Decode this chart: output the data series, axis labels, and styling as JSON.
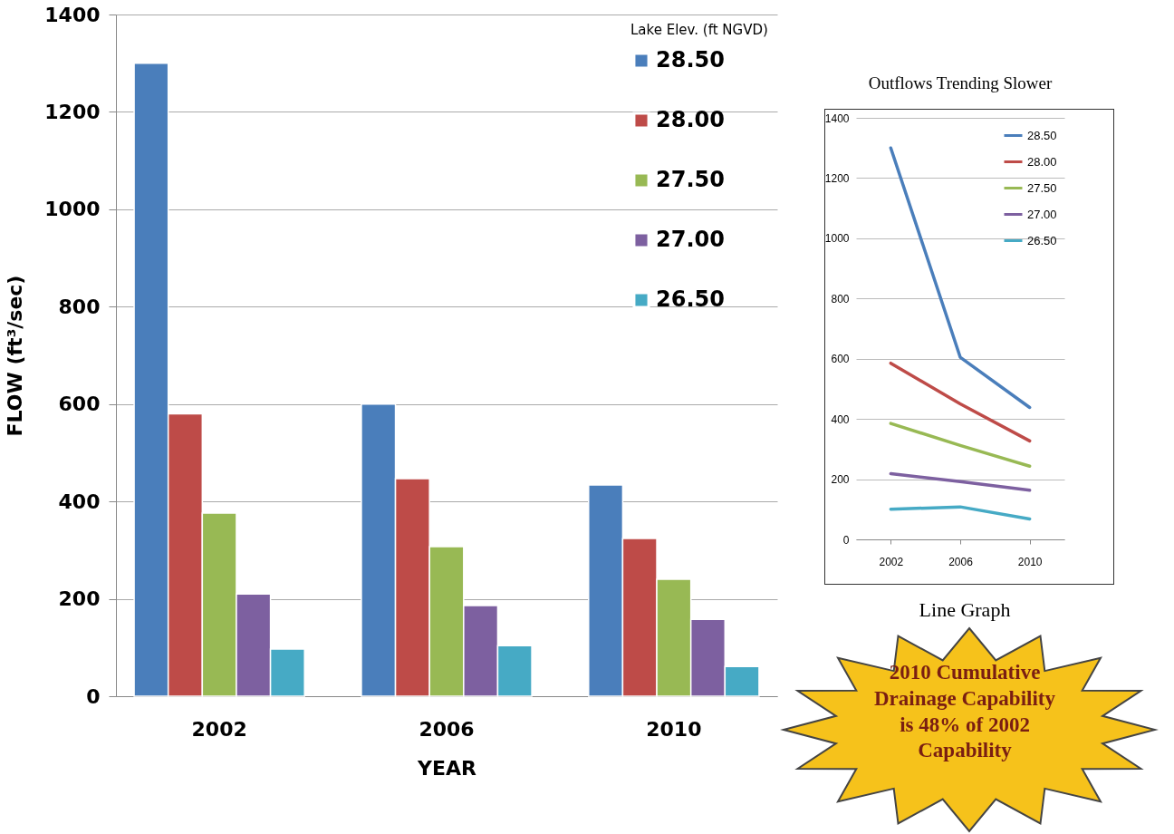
{
  "chart_data": [
    {
      "type": "bar",
      "xlabel": "YEAR",
      "ylabel": "FLOW  (ft³/sec)",
      "categories": [
        "2002",
        "2006",
        "2010"
      ],
      "legend_title": "Lake Elev. (ft NGVD)",
      "legend": "top right",
      "grid": "y",
      "ylim": [
        0,
        1400
      ],
      "yticks": [
        0,
        200,
        400,
        600,
        800,
        1000,
        1200,
        1400
      ],
      "series": [
        {
          "name": "28.50",
          "color": "#4a7ebb",
          "values": [
            1300,
            600,
            434
          ]
        },
        {
          "name": "28.00",
          "color": "#be4b48",
          "values": [
            580,
            447,
            324
          ]
        },
        {
          "name": "27.50",
          "color": "#98b954",
          "values": [
            376,
            307,
            240
          ]
        },
        {
          "name": "27.00",
          "color": "#7d60a0",
          "values": [
            210,
            186,
            158
          ]
        },
        {
          "name": "26.50",
          "color": "#46aac5",
          "values": [
            97,
            104,
            61
          ]
        }
      ]
    },
    {
      "type": "line",
      "title": "Outflows Trending Slower",
      "categories": [
        "2002",
        "2006",
        "2010"
      ],
      "legend": "top right",
      "grid": "y",
      "ylim": [
        0,
        1400
      ],
      "yticks": [
        0,
        200,
        400,
        600,
        800,
        1000,
        1200,
        1400
      ],
      "annotations": [
        "Line Graph",
        "2010 Cumulative Drainage Capability is 48% of 2002 Capability"
      ],
      "series": [
        {
          "name": "28.50",
          "color": "#4a7ebb",
          "values": [
            1300,
            605,
            438
          ]
        },
        {
          "name": "28.00",
          "color": "#be4b48",
          "values": [
            585,
            450,
            327
          ]
        },
        {
          "name": "27.50",
          "color": "#98b954",
          "values": [
            385,
            312,
            243
          ]
        },
        {
          "name": "27.00",
          "color": "#7d60a0",
          "values": [
            218,
            192,
            163
          ]
        },
        {
          "name": "26.50",
          "color": "#46aac5",
          "values": [
            100,
            108,
            68
          ]
        }
      ]
    }
  ]
}
